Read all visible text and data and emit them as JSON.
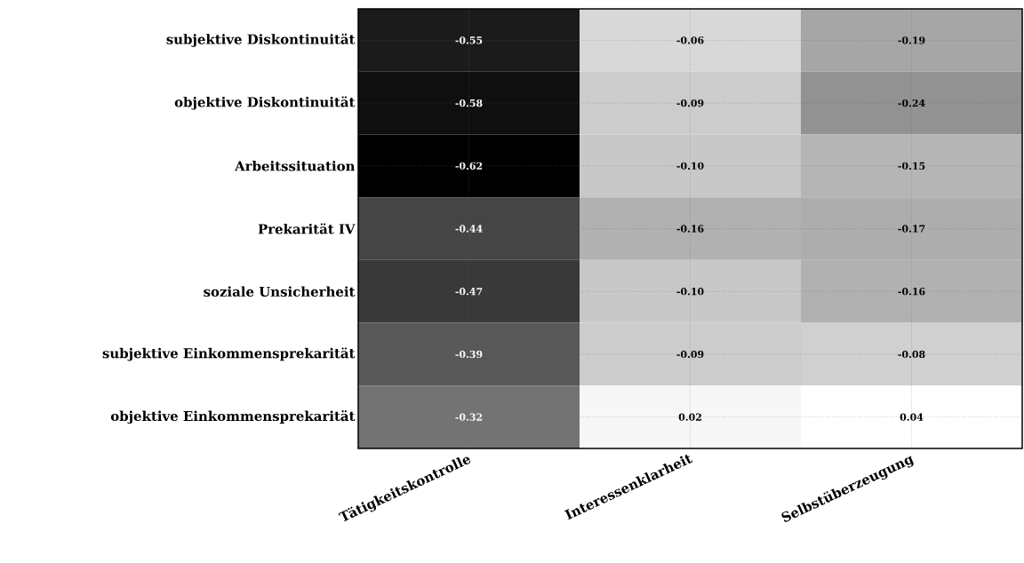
{
  "chart_data": {
    "type": "heatmap",
    "categories": [
      "Tätigkeitskontrolle",
      "Interessenklarheit",
      "Selbstüberzeugung"
    ],
    "y_categories": [
      "subjektive Diskontinuität",
      "objektive Diskontinuität",
      "Arbeitssituation",
      "Prekarität IV",
      "soziale Unsicherheit",
      "subjektive Einkommensprekarität",
      "objektive Einkommensprekarität"
    ],
    "cells": [
      [
        -0.55,
        -0.06,
        -0.19
      ],
      [
        -0.58,
        -0.09,
        -0.24
      ],
      [
        -0.62,
        -0.1,
        -0.15
      ],
      [
        -0.44,
        -0.16,
        -0.17
      ],
      [
        -0.47,
        -0.1,
        -0.16
      ],
      [
        -0.39,
        -0.09,
        -0.08
      ],
      [
        -0.32,
        0.02,
        0.04
      ]
    ],
    "cell_labels": [
      [
        "-0.55",
        "-0.06",
        "-0.19"
      ],
      [
        "-0.58",
        "-0.09",
        "-0.24"
      ],
      [
        "-0.62",
        "-0.10",
        "-0.15"
      ],
      [
        "-0.44",
        "-0.16",
        "-0.17"
      ],
      [
        "-0.47",
        "-0.10",
        "-0.16"
      ],
      [
        "-0.39",
        "-0.09",
        "-0.08"
      ],
      [
        "-0.32",
        "0.02",
        "0.04"
      ]
    ],
    "grid": true
  }
}
